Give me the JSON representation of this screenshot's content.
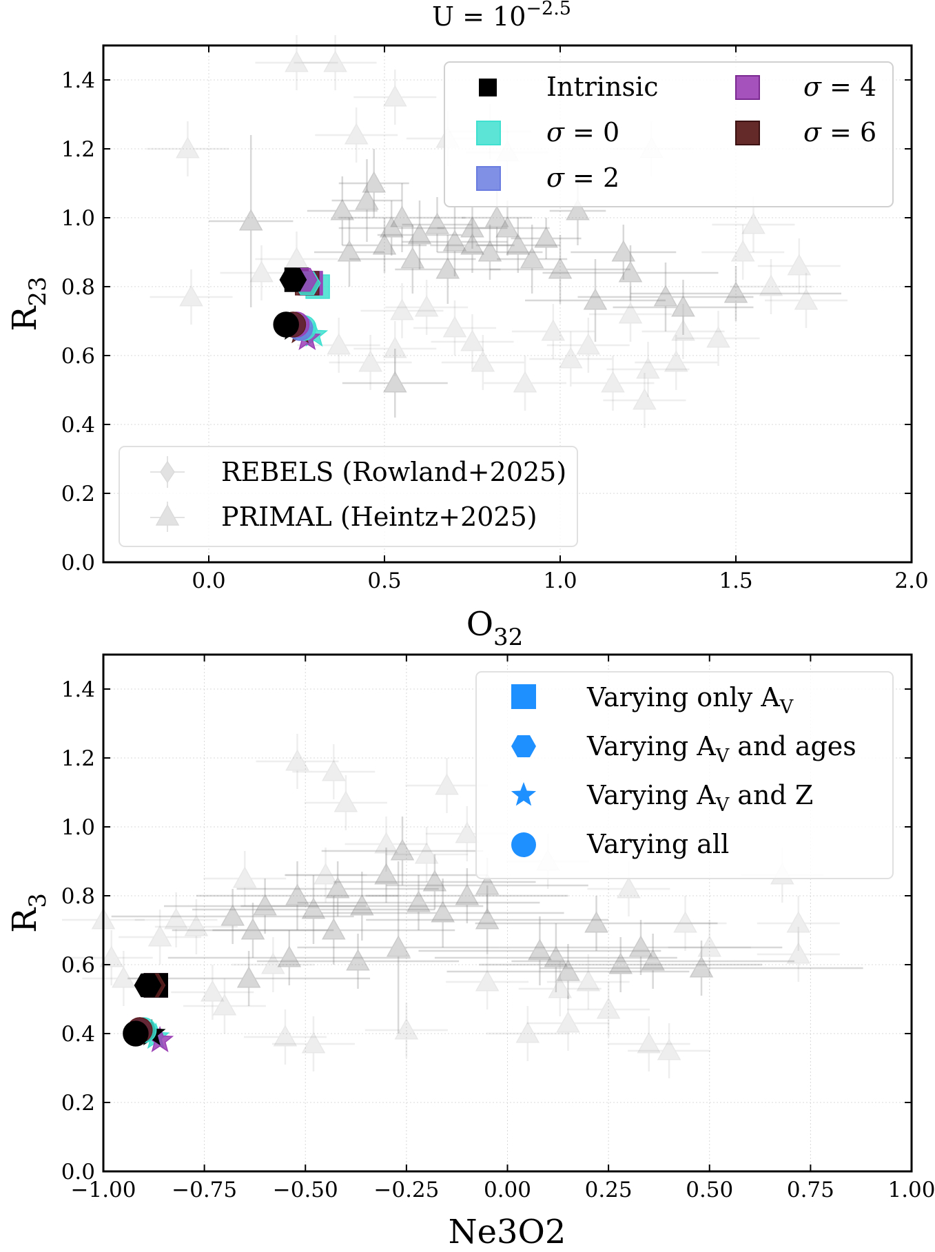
{
  "figure_title": {
    "main": "U = 10",
    "sup": "−2.5"
  },
  "colors": {
    "intrinsic": "#000000",
    "sigma0": "#40e0d0",
    "sigma2": "#6a7ce0",
    "sigma4": "#9b3fb5",
    "sigma6": "#5c1f1f",
    "legend_marker": "#1e90ff",
    "observations": "#808080"
  },
  "chart_data": [
    {
      "type": "scatter",
      "title": "U = 10^-2.5",
      "xlabel": {
        "base": "O",
        "sub": "32"
      },
      "ylabel": {
        "base": "R",
        "sub": "23"
      },
      "xlim": [
        -0.3,
        2.0
      ],
      "ylim": [
        0.0,
        1.5
      ],
      "x_ticks": [
        0.0,
        0.5,
        1.0,
        1.5,
        2.0
      ],
      "x_tick_labels": [
        "0.0",
        "0.5",
        "1.0",
        "1.5",
        "2.0"
      ],
      "y_ticks": [
        0.0,
        0.2,
        0.4,
        0.6,
        0.8,
        1.0,
        1.2,
        1.4
      ],
      "y_tick_labels": [
        "0.0",
        "0.2",
        "0.4",
        "0.6",
        "0.8",
        "1.0",
        "1.2",
        "1.4"
      ],
      "grid": true,
      "sigma_legend": {
        "placement": "top-right",
        "entries": [
          {
            "label": "Intrinsic",
            "sym": "",
            "val": "",
            "color_key": "intrinsic"
          },
          {
            "label": "",
            "sym": "σ",
            "val": "0",
            "color_key": "sigma0"
          },
          {
            "label": "",
            "sym": "σ",
            "val": "2",
            "color_key": "sigma2"
          },
          {
            "label": "",
            "sym": "σ",
            "val": "4",
            "color_key": "sigma4"
          },
          {
            "label": "",
            "sym": "σ",
            "val": "6",
            "color_key": "sigma6"
          }
        ]
      },
      "obs_legend": {
        "placement": "bottom-left",
        "entries": [
          {
            "label": "REBELS (Rowland+2025)",
            "marker": "diamond"
          },
          {
            "label": "PRIMAL (Heintz+2025)",
            "marker": "triangle"
          }
        ]
      },
      "model_series": [
        {
          "name": "Varying only AV",
          "marker": "square",
          "points": [
            {
              "key": "sigma0",
              "x": 0.31,
              "y": 0.8
            },
            {
              "key": "sigma2",
              "x": 0.29,
              "y": 0.81
            },
            {
              "key": "sigma4",
              "x": 0.29,
              "y": 0.81
            },
            {
              "key": "sigma6",
              "x": 0.28,
              "y": 0.81
            },
            {
              "key": "intrinsic",
              "x": 0.25,
              "y": 0.82
            }
          ]
        },
        {
          "name": "Varying AV and ages",
          "marker": "hexagon",
          "points": [
            {
              "key": "sigma0",
              "x": 0.28,
              "y": 0.81
            },
            {
              "key": "sigma4",
              "x": 0.27,
              "y": 0.82
            },
            {
              "key": "intrinsic",
              "x": 0.24,
              "y": 0.82
            }
          ]
        },
        {
          "name": "Varying AV and Z",
          "marker": "star",
          "points": [
            {
              "key": "sigma0",
              "x": 0.3,
              "y": 0.66
            },
            {
              "key": "sigma4",
              "x": 0.28,
              "y": 0.65
            },
            {
              "key": "sigma6",
              "x": 0.26,
              "y": 0.67
            },
            {
              "key": "intrinsic",
              "x": 0.24,
              "y": 0.68
            }
          ]
        },
        {
          "name": "Varying all",
          "marker": "circle",
          "points": [
            {
              "key": "sigma0",
              "x": 0.27,
              "y": 0.68
            },
            {
              "key": "sigma2",
              "x": 0.26,
              "y": 0.68
            },
            {
              "key": "sigma4",
              "x": 0.25,
              "y": 0.69
            },
            {
              "key": "sigma6",
              "x": 0.24,
              "y": 0.69
            },
            {
              "key": "intrinsic",
              "x": 0.22,
              "y": 0.69
            }
          ]
        }
      ],
      "observations": [
        {
          "x": 0.12,
          "y": 0.99,
          "xerr": 0.12,
          "yerr": 0.25
        },
        {
          "x": 0.45,
          "y": 1.05,
          "xerr": 0.1,
          "yerr": 0.12
        },
        {
          "x": 0.52,
          "y": 0.97,
          "xerr": 0.15,
          "yerr": 0.08
        },
        {
          "x": 0.55,
          "y": 1.0,
          "xerr": 0.18,
          "yerr": 0.1
        },
        {
          "x": 0.6,
          "y": 0.95,
          "xerr": 0.12,
          "yerr": 0.1
        },
        {
          "x": 0.65,
          "y": 0.98,
          "xerr": 0.1,
          "yerr": 0.08
        },
        {
          "x": 0.7,
          "y": 0.93,
          "xerr": 0.15,
          "yerr": 0.1
        },
        {
          "x": 0.75,
          "y": 0.97,
          "xerr": 0.1,
          "yerr": 0.06
        },
        {
          "x": 0.8,
          "y": 0.9,
          "xerr": 0.15,
          "yerr": 0.08
        },
        {
          "x": 0.82,
          "y": 1.0,
          "xerr": 0.1,
          "yerr": 0.1
        },
        {
          "x": 0.88,
          "y": 0.92,
          "xerr": 0.12,
          "yerr": 0.08
        },
        {
          "x": 0.92,
          "y": 0.88,
          "xerr": 0.1,
          "yerr": 0.1
        },
        {
          "x": 0.96,
          "y": 0.94,
          "xerr": 0.1,
          "yerr": 0.06
        },
        {
          "x": 1.0,
          "y": 0.85,
          "xerr": 0.2,
          "yerr": 0.1
        },
        {
          "x": 1.05,
          "y": 1.02,
          "xerr": 0.08,
          "yerr": 0.1
        },
        {
          "x": 1.1,
          "y": 0.76,
          "xerr": 0.2,
          "yerr": 0.12
        },
        {
          "x": 1.18,
          "y": 0.9,
          "xerr": 0.15,
          "yerr": 0.08
        },
        {
          "x": 1.2,
          "y": 0.84,
          "xerr": 0.25,
          "yerr": 0.08
        },
        {
          "x": 1.3,
          "y": 0.77,
          "xerr": 0.25,
          "yerr": 0.1
        },
        {
          "x": 1.35,
          "y": 0.74,
          "xerr": 0.2,
          "yerr": 0.08
        },
        {
          "x": 1.5,
          "y": 0.78,
          "xerr": 0.3,
          "yerr": 0.08
        },
        {
          "x": 0.53,
          "y": 0.52,
          "xerr": 0.15,
          "yerr": 0.1
        },
        {
          "x": 0.4,
          "y": 0.9,
          "xerr": 0.1,
          "yerr": 0.1
        },
        {
          "x": 0.5,
          "y": 0.92,
          "xerr": 0.12,
          "yerr": 0.08
        },
        {
          "x": 0.38,
          "y": 1.02,
          "xerr": 0.1,
          "yerr": 0.1
        },
        {
          "x": 0.58,
          "y": 0.88,
          "xerr": 0.18,
          "yerr": 0.1
        },
        {
          "x": 0.68,
          "y": 0.85,
          "xerr": 0.15,
          "yerr": 0.1
        },
        {
          "x": 0.85,
          "y": 0.97,
          "xerr": 0.12,
          "yerr": 0.08
        },
        {
          "x": 0.47,
          "y": 1.1,
          "xerr": 0.1,
          "yerr": 0.1
        },
        {
          "x": 0.75,
          "y": 0.92,
          "xerr": 0.12,
          "yerr": 0.08
        }
      ],
      "observations_faint": [
        {
          "x": -0.06,
          "y": 1.2
        },
        {
          "x": -0.05,
          "y": 0.77
        },
        {
          "x": 0.15,
          "y": 0.84
        },
        {
          "x": 0.25,
          "y": 0.88
        },
        {
          "x": 0.25,
          "y": 1.45
        },
        {
          "x": 0.36,
          "y": 1.45
        },
        {
          "x": 0.37,
          "y": 0.63
        },
        {
          "x": 0.42,
          "y": 1.24
        },
        {
          "x": 0.53,
          "y": 1.35
        },
        {
          "x": 0.53,
          "y": 0.62
        },
        {
          "x": 0.55,
          "y": 0.73
        },
        {
          "x": 0.62,
          "y": 0.74
        },
        {
          "x": 0.68,
          "y": 1.23
        },
        {
          "x": 0.7,
          "y": 0.68
        },
        {
          "x": 0.78,
          "y": 0.58
        },
        {
          "x": 0.8,
          "y": 1.25
        },
        {
          "x": 0.85,
          "y": 1.19
        },
        {
          "x": 0.9,
          "y": 0.52
        },
        {
          "x": 0.98,
          "y": 0.67
        },
        {
          "x": 1.03,
          "y": 0.59
        },
        {
          "x": 1.08,
          "y": 0.63
        },
        {
          "x": 1.15,
          "y": 0.52
        },
        {
          "x": 1.2,
          "y": 0.72
        },
        {
          "x": 1.24,
          "y": 0.47
        },
        {
          "x": 1.25,
          "y": 0.56
        },
        {
          "x": 1.26,
          "y": 1.2
        },
        {
          "x": 1.33,
          "y": 0.58
        },
        {
          "x": 1.35,
          "y": 0.67
        },
        {
          "x": 1.45,
          "y": 0.65
        },
        {
          "x": 1.52,
          "y": 0.9
        },
        {
          "x": 1.55,
          "y": 0.98
        },
        {
          "x": 1.6,
          "y": 0.8
        },
        {
          "x": 1.68,
          "y": 0.86
        },
        {
          "x": 1.7,
          "y": 0.76
        },
        {
          "x": 0.46,
          "y": 0.58
        },
        {
          "x": 0.75,
          "y": 0.64
        }
      ]
    },
    {
      "type": "scatter",
      "xlabel": {
        "base": "Ne3O2",
        "sub": ""
      },
      "ylabel": {
        "base": "R",
        "sub": "3"
      },
      "xlim": [
        -1.0,
        1.0
      ],
      "ylim": [
        0.0,
        1.5
      ],
      "x_ticks": [
        -1.0,
        -0.75,
        -0.5,
        -0.25,
        0.0,
        0.25,
        0.5,
        0.75,
        1.0
      ],
      "x_tick_labels": [
        "−1.00",
        "−0.75",
        "−0.50",
        "−0.25",
        "0.00",
        "0.25",
        "0.50",
        "0.75",
        "1.00"
      ],
      "y_ticks": [
        0.0,
        0.2,
        0.4,
        0.6,
        0.8,
        1.0,
        1.2,
        1.4
      ],
      "y_tick_labels": [
        "0.0",
        "0.2",
        "0.4",
        "0.6",
        "0.8",
        "1.0",
        "1.2",
        "1.4"
      ],
      "grid": true,
      "marker_legend": {
        "placement": "top-right",
        "entries": [
          {
            "marker": "square",
            "pre": "Varying only A",
            "sub": "V",
            "post": ""
          },
          {
            "marker": "hexagon",
            "pre": "Varying A",
            "sub": "V",
            "post": " and ages"
          },
          {
            "marker": "star",
            "pre": "Varying A",
            "sub": "V",
            "post": " and Z"
          },
          {
            "marker": "circle",
            "pre": "Varying all",
            "sub": "",
            "post": ""
          }
        ]
      },
      "model_series": [
        {
          "name": "Varying only AV",
          "marker": "square",
          "points": [
            {
              "key": "sigma0",
              "x": -0.87,
              "y": 0.54
            },
            {
              "key": "sigma4",
              "x": -0.87,
              "y": 0.54
            },
            {
              "key": "sigma6",
              "x": -0.87,
              "y": 0.54
            },
            {
              "key": "intrinsic",
              "x": -0.87,
              "y": 0.54
            }
          ]
        },
        {
          "name": "Varying AV and ages",
          "marker": "hexagon",
          "points": [
            {
              "key": "sigma6",
              "x": -0.88,
              "y": 0.54
            },
            {
              "key": "intrinsic",
              "x": -0.89,
              "y": 0.54
            }
          ]
        },
        {
          "name": "Varying AV and Z",
          "marker": "star",
          "points": [
            {
              "key": "sigma0",
              "x": -0.87,
              "y": 0.39
            },
            {
              "key": "sigma4",
              "x": -0.86,
              "y": 0.38
            },
            {
              "key": "intrinsic",
              "x": -0.88,
              "y": 0.4
            }
          ]
        },
        {
          "name": "Varying all",
          "marker": "circle",
          "points": [
            {
              "key": "sigma0",
              "x": -0.9,
              "y": 0.41
            },
            {
              "key": "sigma4",
              "x": -0.91,
              "y": 0.41
            },
            {
              "key": "sigma6",
              "x": -0.91,
              "y": 0.41
            },
            {
              "key": "intrinsic",
              "x": -0.92,
              "y": 0.4
            }
          ]
        }
      ],
      "observations": [
        {
          "x": -0.63,
          "y": 0.7,
          "xerr": 0.2,
          "yerr": 0.08
        },
        {
          "x": -0.6,
          "y": 0.77,
          "xerr": 0.25,
          "yerr": 0.08
        },
        {
          "x": -0.52,
          "y": 0.8,
          "xerr": 0.25,
          "yerr": 0.1
        },
        {
          "x": -0.48,
          "y": 0.76,
          "xerr": 0.3,
          "yerr": 0.1
        },
        {
          "x": -0.42,
          "y": 0.82,
          "xerr": 0.25,
          "yerr": 0.08
        },
        {
          "x": -0.36,
          "y": 0.77,
          "xerr": 0.3,
          "yerr": 0.1
        },
        {
          "x": -0.3,
          "y": 0.86,
          "xerr": 0.25,
          "yerr": 0.08
        },
        {
          "x": -0.26,
          "y": 0.93,
          "xerr": 0.2,
          "yerr": 0.1
        },
        {
          "x": -0.22,
          "y": 0.78,
          "xerr": 0.3,
          "yerr": 0.08
        },
        {
          "x": -0.16,
          "y": 0.75,
          "xerr": 0.3,
          "yerr": 0.1
        },
        {
          "x": -0.1,
          "y": 0.8,
          "xerr": 0.25,
          "yerr": 0.08
        },
        {
          "x": -0.05,
          "y": 0.73,
          "xerr": 0.3,
          "yerr": 0.1
        },
        {
          "x": -0.27,
          "y": 0.65,
          "xerr": 0.25,
          "yerr": 0.25
        },
        {
          "x": -0.37,
          "y": 0.61,
          "xerr": 0.25,
          "yerr": 0.08
        },
        {
          "x": -0.54,
          "y": 0.62,
          "xerr": 0.3,
          "yerr": 0.08
        },
        {
          "x": -0.64,
          "y": 0.56,
          "xerr": 0.3,
          "yerr": 0.08
        },
        {
          "x": 0.12,
          "y": 0.62,
          "xerr": 0.3,
          "yerr": 0.1
        },
        {
          "x": 0.22,
          "y": 0.72,
          "xerr": 0.3,
          "yerr": 0.08
        },
        {
          "x": 0.28,
          "y": 0.6,
          "xerr": 0.35,
          "yerr": 0.08
        },
        {
          "x": 0.33,
          "y": 0.65,
          "xerr": 0.35,
          "yerr": 0.08
        },
        {
          "x": 0.36,
          "y": 0.61,
          "xerr": 0.35,
          "yerr": 0.08
        },
        {
          "x": 0.48,
          "y": 0.59,
          "xerr": 0.4,
          "yerr": 0.08
        },
        {
          "x": -0.68,
          "y": 0.74,
          "xerr": 0.3,
          "yerr": 0.08
        },
        {
          "x": -0.43,
          "y": 0.7,
          "xerr": 0.3,
          "yerr": 0.1
        },
        {
          "x": -0.18,
          "y": 0.84,
          "xerr": 0.25,
          "yerr": 0.08
        },
        {
          "x": 0.08,
          "y": 0.64,
          "xerr": 0.3,
          "yerr": 0.1
        },
        {
          "x": -0.05,
          "y": 0.83,
          "xerr": 0.25,
          "yerr": 0.08
        },
        {
          "x": 0.15,
          "y": 0.58,
          "xerr": 0.3,
          "yerr": 0.08
        }
      ],
      "observations_faint": [
        {
          "x": -1.0,
          "y": 0.73
        },
        {
          "x": -0.98,
          "y": 0.62
        },
        {
          "x": -0.95,
          "y": 0.56
        },
        {
          "x": -0.86,
          "y": 0.68
        },
        {
          "x": -0.82,
          "y": 0.73
        },
        {
          "x": -0.77,
          "y": 0.71
        },
        {
          "x": -0.73,
          "y": 0.52
        },
        {
          "x": -0.7,
          "y": 0.48
        },
        {
          "x": -0.65,
          "y": 0.85
        },
        {
          "x": -0.58,
          "y": 0.6
        },
        {
          "x": -0.55,
          "y": 0.39
        },
        {
          "x": -0.52,
          "y": 1.19
        },
        {
          "x": -0.48,
          "y": 0.37
        },
        {
          "x": -0.45,
          "y": 0.86
        },
        {
          "x": -0.43,
          "y": 1.16
        },
        {
          "x": -0.4,
          "y": 1.07
        },
        {
          "x": -0.3,
          "y": 0.95
        },
        {
          "x": -0.2,
          "y": 0.92
        },
        {
          "x": -0.15,
          "y": 1.12
        },
        {
          "x": -0.1,
          "y": 0.98
        },
        {
          "x": -0.05,
          "y": 0.55
        },
        {
          "x": 0.05,
          "y": 0.4
        },
        {
          "x": 0.1,
          "y": 0.9
        },
        {
          "x": 0.15,
          "y": 0.43
        },
        {
          "x": 0.2,
          "y": 0.55
        },
        {
          "x": 0.25,
          "y": 0.47
        },
        {
          "x": 0.3,
          "y": 0.82
        },
        {
          "x": 0.35,
          "y": 0.37
        },
        {
          "x": 0.4,
          "y": 0.35
        },
        {
          "x": 0.44,
          "y": 0.72
        },
        {
          "x": 0.5,
          "y": 0.65
        },
        {
          "x": 0.68,
          "y": 0.86
        },
        {
          "x": 0.72,
          "y": 0.63
        },
        {
          "x": 0.72,
          "y": 0.72
        },
        {
          "x": -0.25,
          "y": 0.41
        },
        {
          "x": 0.13,
          "y": 0.53
        }
      ]
    }
  ]
}
